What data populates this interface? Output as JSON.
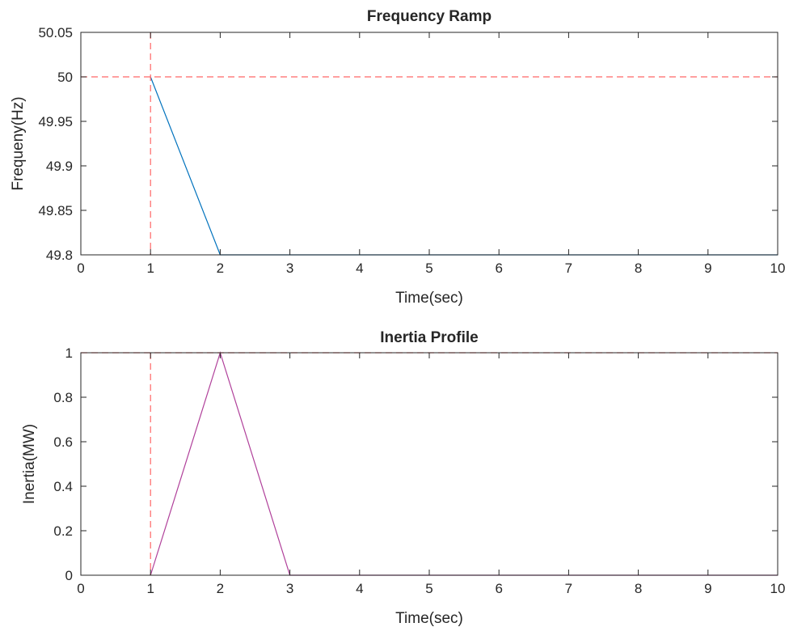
{
  "chart_data": [
    {
      "type": "line",
      "title": "Frequency Ramp",
      "xlabel": "Time(sec)",
      "ylabel": "Frequeny(Hz)",
      "xlim": [
        0,
        10
      ],
      "ylim": [
        49.8,
        50.05
      ],
      "xticks": [
        "0",
        "1",
        "2",
        "3",
        "4",
        "5",
        "6",
        "7",
        "8",
        "9",
        "10"
      ],
      "yticks": [
        "49.8",
        "49.85",
        "49.9",
        "49.95",
        "50",
        "50.05"
      ],
      "grid": false,
      "series": [
        {
          "x": [
            1,
            2,
            10
          ],
          "y": [
            50,
            49.8,
            49.8
          ],
          "color": "#0072BD",
          "style": "solid"
        }
      ],
      "reference_lines": [
        {
          "orientation": "vertical",
          "value": 1,
          "color": "#FF6666",
          "style": "dashed"
        },
        {
          "orientation": "horizontal",
          "value": 50,
          "color": "#FF6666",
          "style": "dashed"
        }
      ]
    },
    {
      "type": "line",
      "title": "Inertia Profile",
      "xlabel": "Time(sec)",
      "ylabel": "Inertia(MW)",
      "xlim": [
        0,
        10
      ],
      "ylim": [
        0,
        1
      ],
      "xticks": [
        "0",
        "1",
        "2",
        "3",
        "4",
        "5",
        "6",
        "7",
        "8",
        "9",
        "10"
      ],
      "yticks": [
        "0",
        "0.2",
        "0.4",
        "0.6",
        "0.8",
        "1"
      ],
      "grid": false,
      "series": [
        {
          "x": [
            1,
            2,
            3,
            10
          ],
          "y": [
            0,
            1,
            0,
            0
          ],
          "color": "#B0409A",
          "style": "solid"
        }
      ],
      "reference_lines": [
        {
          "orientation": "vertical",
          "value": 1,
          "color": "#FF6666",
          "style": "dashed"
        },
        {
          "orientation": "horizontal",
          "value": 1,
          "color": "#FF6666",
          "style": "dashed"
        }
      ]
    }
  ]
}
